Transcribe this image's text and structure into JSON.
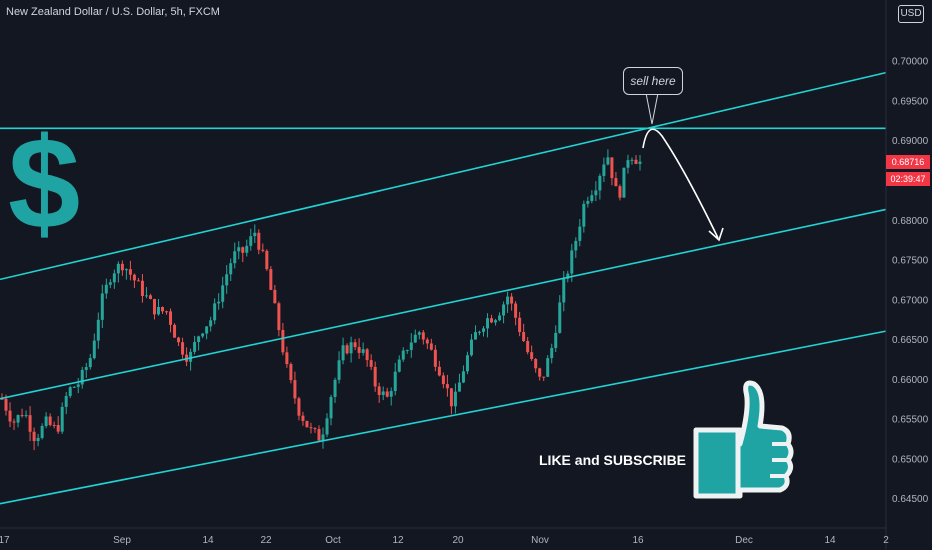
{
  "header": {
    "title": "New Zealand Dollar / U.S. Dollar, 5h, FXCM",
    "currency": "USD"
  },
  "chart_data": {
    "type": "candlestick",
    "ylim": [
      0.6425,
      0.7065
    ],
    "y_ticks": [
      "0.70000",
      "0.69500",
      "0.69000",
      "0.68500",
      "0.68000",
      "0.67500",
      "0.67000",
      "0.66500",
      "0.66000",
      "0.65500",
      "0.65000",
      "0.64500"
    ],
    "y_tick_values": [
      0.7,
      0.695,
      0.69,
      0.685,
      0.68,
      0.675,
      0.67,
      0.665,
      0.66,
      0.655,
      0.65,
      0.645
    ],
    "x_ticks": [
      "17",
      "Sep",
      "14",
      "22",
      "Oct",
      "12",
      "20",
      "Nov",
      "16",
      "Dec",
      "14",
      "2"
    ],
    "current_price": "0.68716",
    "countdown": "02:39:47",
    "ohlc_anchor_closes": [
      0.6575,
      0.6545,
      0.656,
      0.6525,
      0.6545,
      0.6535,
      0.6585,
      0.6595,
      0.6625,
      0.6695,
      0.6735,
      0.6745,
      0.6725,
      0.6705,
      0.6685,
      0.6685,
      0.6645,
      0.6625,
      0.666,
      0.6675,
      0.6715,
      0.6755,
      0.676,
      0.6785,
      0.674,
      0.6675,
      0.6605,
      0.656,
      0.6535,
      0.6525,
      0.6585,
      0.6635,
      0.6645,
      0.663,
      0.659,
      0.6575,
      0.6615,
      0.6645,
      0.666,
      0.6635,
      0.6605,
      0.6565,
      0.6615,
      0.6655,
      0.6675,
      0.668,
      0.6705,
      0.6665,
      0.6625,
      0.6595,
      0.664,
      0.6715,
      0.6765,
      0.6825,
      0.6845,
      0.6885,
      0.6825,
      0.6885,
      0.6872
    ],
    "trend_lines": [
      {
        "name": "resistance",
        "x": [
          "17",
          "2"
        ],
        "y": [
          0.6725,
          0.6985
        ]
      },
      {
        "name": "middle",
        "x": [
          "17",
          "2"
        ],
        "y": [
          0.6575,
          0.6813
        ]
      },
      {
        "name": "support",
        "x": [
          "17",
          "2"
        ],
        "y": [
          0.6443,
          0.666
        ]
      },
      {
        "name": "horizontal",
        "y": 0.6915
      }
    ],
    "colors": {
      "up": "#26a69a",
      "down": "#ef5350",
      "lines": "#22d3d3",
      "accent": "#1fa3a3"
    }
  },
  "annotations": {
    "sell": "sell here",
    "like": "LIKE and SUBSCRIBE",
    "dollar": "$"
  },
  "icons": [
    "thumbs-up-icon",
    "curved-arrow-icon"
  ]
}
